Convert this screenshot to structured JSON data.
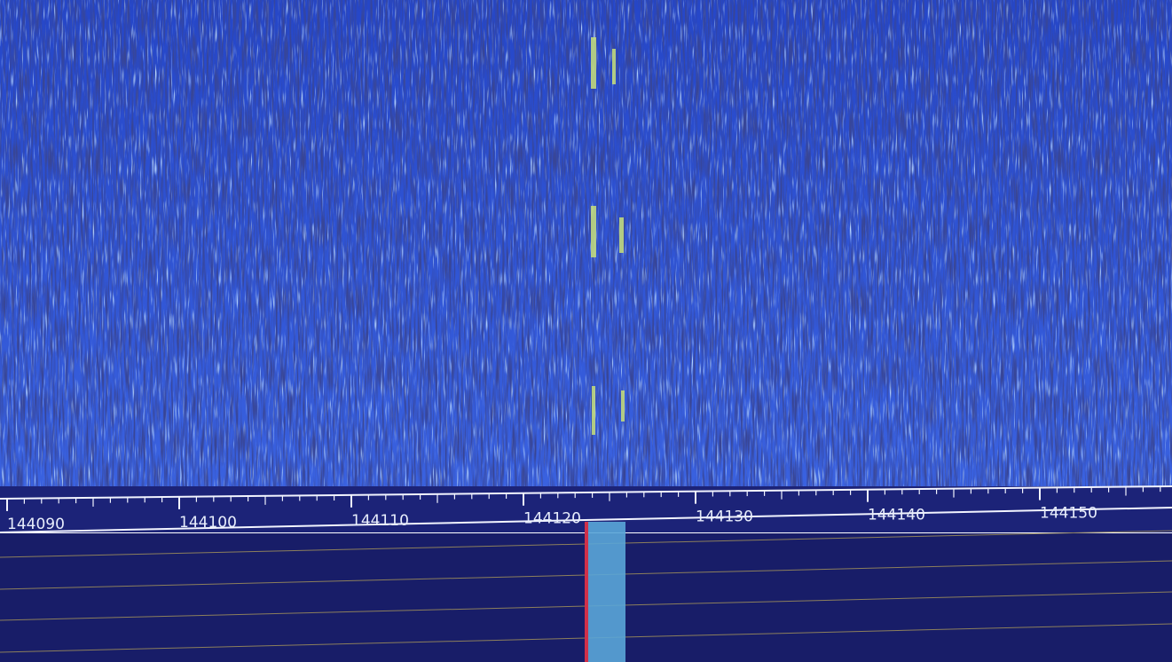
{
  "frequency_scale": {
    "labels": [
      "144090",
      "144100",
      "144110",
      "144120",
      "144130",
      "144140",
      "144150"
    ]
  }
}
